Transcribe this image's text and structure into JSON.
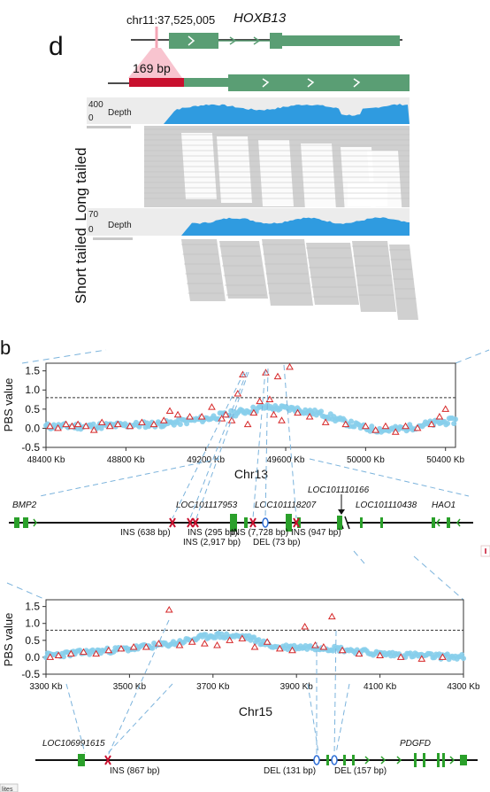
{
  "panel_d": {
    "letter": "d",
    "coord": "chr11:37,525,005",
    "gene": "HOXB13",
    "insertion_label": "169 bp",
    "depth_label": "Depth",
    "long_tailed": {
      "label": "Long tailed",
      "max": "400",
      "min": "0"
    },
    "short_tailed": {
      "label": "Short tailed",
      "max": "70",
      "min": "0"
    }
  },
  "panel_b": {
    "letter": "b"
  },
  "chart_data": [
    {
      "type": "scatter",
      "title": "",
      "xlabel": "Chr13",
      "ylabel": "PBS value",
      "xlim": [
        48400,
        50450
      ],
      "ylim": [
        -0.5,
        1.7
      ],
      "xticks": [
        "48400 Kb",
        "48800 Kb",
        "49200 Kb",
        "49600 Kb",
        "50000 Kb",
        "50400 Kb"
      ],
      "xtick_values": [
        48400,
        48800,
        49200,
        49600,
        50000,
        50400
      ],
      "yticks": [
        "1.5",
        "1.0",
        "0.5",
        "0.0",
        "-0.5"
      ],
      "ytick_values": [
        1.5,
        1.0,
        0.5,
        0.0,
        -0.5
      ],
      "threshold": 0.8,
      "colors": {
        "circle": "#87ceeb",
        "triangle": "#d62728"
      },
      "triangles": [
        {
          "x": 48420,
          "y": 0.05
        },
        {
          "x": 48460,
          "y": 0.0
        },
        {
          "x": 48500,
          "y": 0.1
        },
        {
          "x": 48530,
          "y": 0.05
        },
        {
          "x": 48560,
          "y": 0.1
        },
        {
          "x": 48600,
          "y": 0.05
        },
        {
          "x": 48640,
          "y": -0.05
        },
        {
          "x": 48680,
          "y": 0.15
        },
        {
          "x": 48720,
          "y": 0.05
        },
        {
          "x": 48760,
          "y": 0.1
        },
        {
          "x": 48820,
          "y": 0.05
        },
        {
          "x": 48880,
          "y": 0.15
        },
        {
          "x": 48940,
          "y": 0.1
        },
        {
          "x": 48990,
          "y": 0.2
        },
        {
          "x": 49020,
          "y": 0.45
        },
        {
          "x": 49060,
          "y": 0.35
        },
        {
          "x": 49120,
          "y": 0.3
        },
        {
          "x": 49180,
          "y": 0.3
        },
        {
          "x": 49230,
          "y": 0.55
        },
        {
          "x": 49280,
          "y": 0.25
        },
        {
          "x": 49300,
          "y": 0.35
        },
        {
          "x": 49330,
          "y": 0.2
        },
        {
          "x": 49360,
          "y": 0.9
        },
        {
          "x": 49385,
          "y": 1.4
        },
        {
          "x": 49410,
          "y": 0.1
        },
        {
          "x": 49440,
          "y": 0.4
        },
        {
          "x": 49470,
          "y": 0.7
        },
        {
          "x": 49500,
          "y": 1.45
        },
        {
          "x": 49520,
          "y": 0.75
        },
        {
          "x": 49540,
          "y": 0.35
        },
        {
          "x": 49560,
          "y": 1.35
        },
        {
          "x": 49580,
          "y": 0.2
        },
        {
          "x": 49620,
          "y": 1.6
        },
        {
          "x": 49660,
          "y": 0.4
        },
        {
          "x": 49720,
          "y": 0.3
        },
        {
          "x": 49800,
          "y": 0.15
        },
        {
          "x": 49900,
          "y": 0.1
        },
        {
          "x": 50000,
          "y": 0.05
        },
        {
          "x": 50050,
          "y": -0.05
        },
        {
          "x": 50100,
          "y": 0.05
        },
        {
          "x": 50150,
          "y": -0.1
        },
        {
          "x": 50200,
          "y": 0.05
        },
        {
          "x": 50260,
          "y": 0.0
        },
        {
          "x": 50330,
          "y": 0.1
        },
        {
          "x": 50370,
          "y": 0.3
        },
        {
          "x": 50400,
          "y": 0.5
        }
      ],
      "circles_profile": [
        {
          "x": 48400,
          "y": 0.05
        },
        {
          "x": 48600,
          "y": 0.05
        },
        {
          "x": 48800,
          "y": 0.08
        },
        {
          "x": 49000,
          "y": 0.12
        },
        {
          "x": 49200,
          "y": 0.25
        },
        {
          "x": 49350,
          "y": 0.4
        },
        {
          "x": 49500,
          "y": 0.55
        },
        {
          "x": 49650,
          "y": 0.5
        },
        {
          "x": 49800,
          "y": 0.35
        },
        {
          "x": 49900,
          "y": 0.15
        },
        {
          "x": 50000,
          "y": 0.0
        },
        {
          "x": 50100,
          "y": -0.05
        },
        {
          "x": 50200,
          "y": 0.0
        },
        {
          "x": 50300,
          "y": 0.1
        },
        {
          "x": 50450,
          "y": 0.2
        }
      ]
    },
    {
      "type": "scatter",
      "title": "",
      "xlabel": "Chr15",
      "ylabel": "PBS value",
      "xlim": [
        3300,
        4300
      ],
      "ylim": [
        -0.5,
        1.7
      ],
      "xticks": [
        "3300 Kb",
        "3500 Kb",
        "3700 Kb",
        "3900 Kb",
        "4100 Kb",
        "4300 Kb"
      ],
      "xtick_values": [
        3300,
        3500,
        3700,
        3900,
        4100,
        4300
      ],
      "yticks": [
        "1.5",
        "1.0",
        "0.5",
        "0.0",
        "-0.5"
      ],
      "ytick_values": [
        1.5,
        1.0,
        0.5,
        0.0,
        -0.5
      ],
      "threshold": 0.8,
      "colors": {
        "circle": "#87ceeb",
        "triangle": "#d62728"
      },
      "triangles": [
        {
          "x": 3310,
          "y": 0.0
        },
        {
          "x": 3330,
          "y": 0.05
        },
        {
          "x": 3360,
          "y": 0.1
        },
        {
          "x": 3390,
          "y": 0.15
        },
        {
          "x": 3420,
          "y": 0.1
        },
        {
          "x": 3450,
          "y": 0.2
        },
        {
          "x": 3480,
          "y": 0.25
        },
        {
          "x": 3510,
          "y": 0.3
        },
        {
          "x": 3540,
          "y": 0.3
        },
        {
          "x": 3570,
          "y": 0.4
        },
        {
          "x": 3595,
          "y": 1.4
        },
        {
          "x": 3620,
          "y": 0.35
        },
        {
          "x": 3650,
          "y": 0.45
        },
        {
          "x": 3680,
          "y": 0.4
        },
        {
          "x": 3710,
          "y": 0.35
        },
        {
          "x": 3740,
          "y": 0.5
        },
        {
          "x": 3770,
          "y": 0.55
        },
        {
          "x": 3800,
          "y": 0.3
        },
        {
          "x": 3830,
          "y": 0.45
        },
        {
          "x": 3860,
          "y": 0.25
        },
        {
          "x": 3890,
          "y": 0.2
        },
        {
          "x": 3920,
          "y": 0.9
        },
        {
          "x": 3945,
          "y": 0.35
        },
        {
          "x": 3965,
          "y": 0.3
        },
        {
          "x": 3985,
          "y": 1.2
        },
        {
          "x": 4010,
          "y": 0.2
        },
        {
          "x": 4050,
          "y": 0.1
        },
        {
          "x": 4100,
          "y": 0.05
        },
        {
          "x": 4150,
          "y": 0.0
        },
        {
          "x": 4200,
          "y": -0.05
        },
        {
          "x": 4250,
          "y": 0.0
        }
      ],
      "circles_profile": [
        {
          "x": 3300,
          "y": 0.05
        },
        {
          "x": 3400,
          "y": 0.15
        },
        {
          "x": 3500,
          "y": 0.25
        },
        {
          "x": 3600,
          "y": 0.4
        },
        {
          "x": 3700,
          "y": 0.65
        },
        {
          "x": 3780,
          "y": 0.6
        },
        {
          "x": 3850,
          "y": 0.3
        },
        {
          "x": 3950,
          "y": 0.3
        },
        {
          "x": 4000,
          "y": 0.25
        },
        {
          "x": 4100,
          "y": 0.1
        },
        {
          "x": 4200,
          "y": 0.05
        },
        {
          "x": 4300,
          "y": 0.0
        }
      ]
    }
  ],
  "gene_track_13": {
    "genes": [
      "BMP2",
      "LOC101117953",
      "LOC101118207",
      "LOC101110166",
      "LOC101110438",
      "HAO1"
    ],
    "variants": [
      "INS (638 bp)",
      "INS (295 bp)",
      "INS (2,917 bp)",
      "INS (7,728 bp)",
      "DEL (73 bp)",
      "INS (947 bp)"
    ]
  },
  "gene_track_15": {
    "genes": [
      "LOC106991615",
      "PDGFD"
    ],
    "variants": [
      "INS (867 bp)",
      "DEL (131 bp)",
      "DEL (157 bp)"
    ]
  },
  "footer_snippet": "lites"
}
